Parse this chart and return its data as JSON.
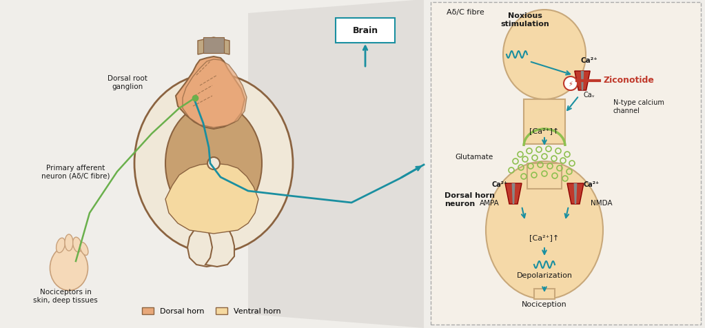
{
  "bg_color": "#f0eeea",
  "neuron_fill": "#f5d9a8",
  "neuron_edge": "#c8a87a",
  "dorsal_horn_fill": "#e8a87a",
  "ventral_horn_fill": "#f5d9a0",
  "teal_arrow": "#1a8fa0",
  "green_dot": "#8ec050",
  "green_arc": "#8ec050",
  "ziconotide_color": "#c0392b",
  "text_dark": "#1a1a1a",
  "label_brain": "Brain",
  "label_adelta": "Aδ/C fibre",
  "label_noxious": "Noxious\nstimulation",
  "label_ziconotide": "Ziconotide",
  "label_ntype": "N-type calcium\nchannel",
  "label_glutamate": "Glutamate",
  "label_ampa": "AMPA",
  "label_nmda": "NMDA",
  "label_depol": "Depolarization",
  "label_nocicep": "Nociception",
  "label_dorsal_horn_neuron": "Dorsal horn\nneuron",
  "label_dorsal_root": "Dorsal root\nganglion",
  "label_primary_afferent": "Primary afferent\nneuron (Aδ/C fibre)",
  "label_nociceptors": "Nociceptors in\nskin, deep tissues",
  "legend_dorsal": "Dorsal horn",
  "legend_ventral": "Ventral horn"
}
